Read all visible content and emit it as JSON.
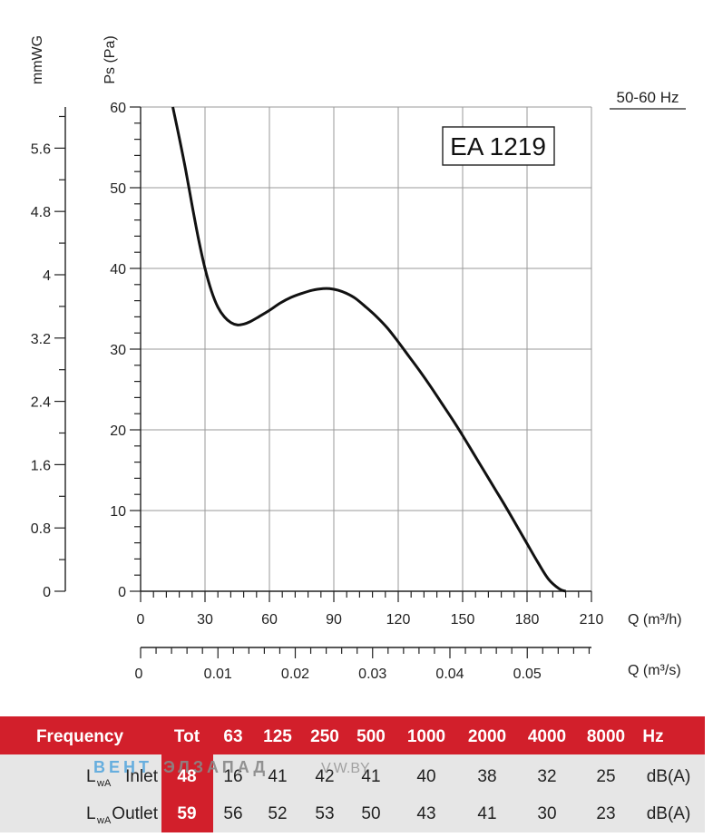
{
  "chart_data": {
    "type": "line",
    "model": "EA 1219",
    "frequency": "50-60 Hz",
    "xlabel": "Q (m³/h)",
    "xlabel2": "Q (m³/s)",
    "ylabel": "Ps (Pa)",
    "ylabel2": "mmWG",
    "xlim": [
      0,
      210
    ],
    "ylim": [
      0,
      60
    ],
    "x2lim": [
      0,
      0.0583
    ],
    "y2lim": [
      0,
      6.12
    ],
    "x_ticks": [
      0,
      30,
      60,
      90,
      120,
      150,
      180,
      210
    ],
    "y_ticks": [
      0,
      10,
      20,
      30,
      40,
      50,
      60
    ],
    "x2_ticks": [
      0,
      0.01,
      0.02,
      0.03,
      0.04,
      0.05
    ],
    "x2_tick_labels": [
      "0",
      "0.01",
      "0.02",
      "0.03",
      "0.04",
      "0.05"
    ],
    "y2_ticks": [
      0,
      0.8,
      1.6,
      2.4,
      3.2,
      4,
      4.8,
      5.6
    ],
    "y2_tick_labels": [
      "0",
      "0.8",
      "1.6",
      "2.4",
      "3.2",
      "4",
      "4.8",
      "5.6"
    ],
    "grid": true,
    "series": [
      {
        "x": [
          15,
          18,
          21,
          24,
          27,
          30,
          33,
          36,
          39,
          42,
          45,
          48,
          51,
          55,
          60,
          65,
          70,
          75,
          80,
          85,
          88,
          92,
          96,
          100,
          105,
          110,
          115,
          120,
          125,
          130,
          135,
          140,
          145,
          150,
          155,
          160,
          165,
          170,
          175,
          180,
          185,
          190,
          195,
          198
        ],
        "y": [
          60,
          56.2,
          52.2,
          47.8,
          43.6,
          40,
          37.2,
          35.2,
          34,
          33.3,
          33,
          33.1,
          33.4,
          34,
          34.8,
          35.7,
          36.4,
          36.9,
          37.3,
          37.5,
          37.5,
          37.3,
          36.9,
          36.3,
          35.2,
          34,
          32.6,
          30.9,
          29.1,
          27.3,
          25.4,
          23.4,
          21.4,
          19.3,
          17.1,
          14.9,
          12.7,
          10.5,
          8.2,
          5.9,
          3.6,
          1.5,
          0.3,
          0
        ]
      }
    ]
  },
  "table": {
    "header": [
      "Frequency",
      "Tot",
      "63",
      "125",
      "250",
      "500",
      "1000",
      "2000",
      "4000",
      "8000",
      "Hz"
    ],
    "rows": [
      {
        "label": "L",
        "sub": "wA",
        "name": "Inlet",
        "tot": "48",
        "values": [
          "16",
          "41",
          "42",
          "41",
          "40",
          "38",
          "32",
          "25"
        ],
        "unit": "dB(A)"
      },
      {
        "label": "L",
        "sub": "wA",
        "name": "Outlet",
        "tot": "59",
        "values": [
          "56",
          "52",
          "53",
          "50",
          "43",
          "41",
          "30",
          "23"
        ],
        "unit": "dB(A)"
      }
    ]
  },
  "watermark": {
    "part1": "ВЕНТ",
    "part2": "ЭЛЗАПАД",
    "part3": "V.W.BY"
  },
  "colors": {
    "header_red": "#d21f2b",
    "row_gray": "#e6e6e6",
    "curve": "#111111"
  }
}
